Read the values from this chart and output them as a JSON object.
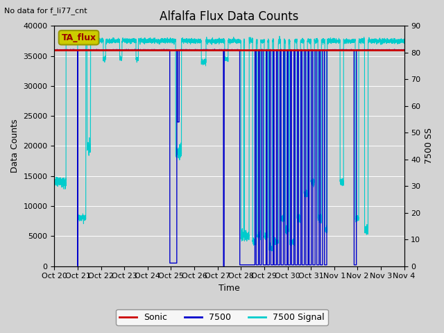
{
  "title": "Alfalfa Flux Data Counts",
  "subtitle": "No data for f_li77_cnt",
  "xlabel": "Time",
  "ylabel_left": "Data Counts",
  "ylabel_right": "7500 SS",
  "ylim_left": [
    0,
    40000
  ],
  "ylim_right": [
    0,
    90
  ],
  "plot_bg_color": "#d3d3d3",
  "sonic_color": "#cc0000",
  "s7500_color": "#0000cc",
  "signal_color": "#00cccc",
  "sonic_value": 36000,
  "legend_label_sonic": "Sonic",
  "legend_label_7500": "7500",
  "legend_label_signal": "7500 Signal",
  "ta_flux_box_color": "#cccc00",
  "ta_flux_text": "TA_flux",
  "x_tick_labels": [
    "Oct 20",
    "Oct 21",
    "Oct 22",
    "Oct 23",
    "Oct 24",
    "Oct 25",
    "Oct 26",
    "Oct 27",
    "Oct 28",
    "Oct 29",
    "Oct 30",
    "Oct 31",
    "Nov 1",
    "Nov 2",
    "Nov 3",
    "Nov 4"
  ],
  "yticks_left": [
    0,
    5000,
    10000,
    15000,
    20000,
    25000,
    30000,
    35000,
    40000
  ],
  "yticks_right": [
    0,
    10,
    20,
    30,
    40,
    50,
    60,
    70,
    80,
    90
  ]
}
